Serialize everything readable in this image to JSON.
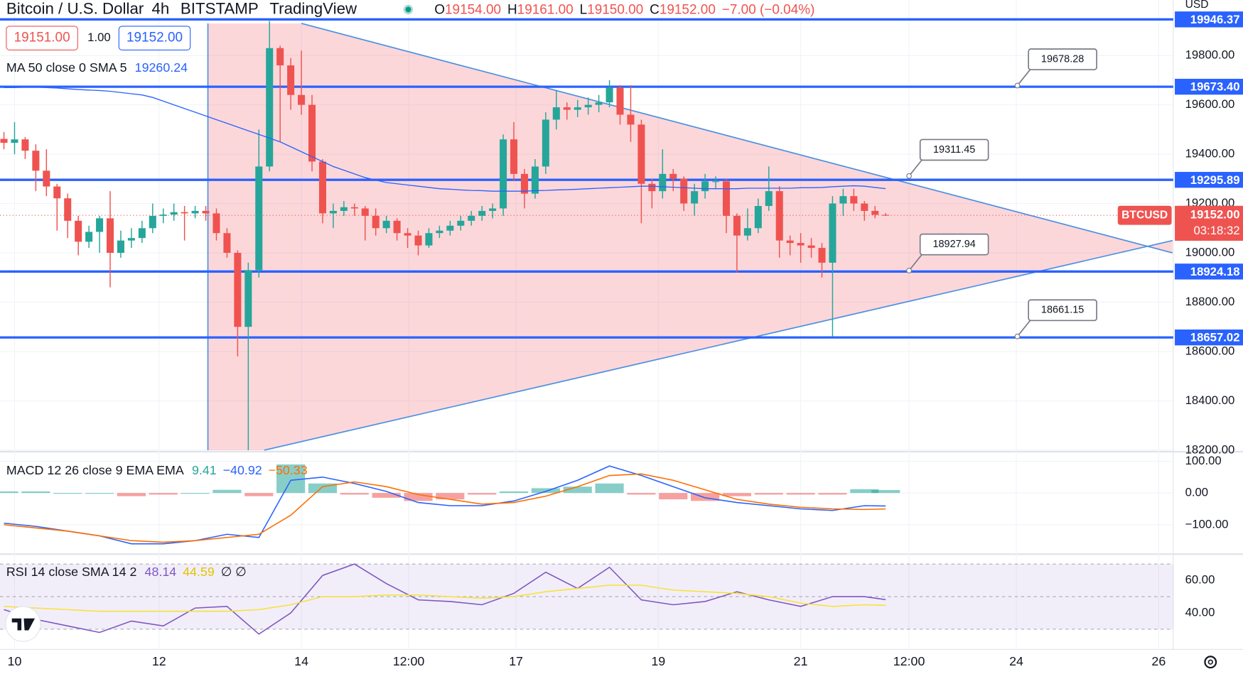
{
  "header": {
    "title": "Bitcoin / U.S. Dollar",
    "interval": "4h",
    "exchange": "BITSTAMP",
    "brand": "TradingView",
    "ohlc": [
      [
        "O",
        "19154.00"
      ],
      [
        "H",
        "19161.00"
      ],
      [
        "L",
        "19150.00"
      ],
      [
        "C",
        "19152.00"
      ]
    ],
    "change": "−7.00 (−0.04%)",
    "sell": "19151.00",
    "spread": "1.00",
    "buy": "19152.00"
  },
  "chart_data": [
    {
      "type": "candlestick",
      "legend": "MA 50 close 0 SMA 5",
      "legend_value": "19260.24",
      "up_color": "#26a69a",
      "down_color": "#ef5350",
      "ma_color": "#2962ff",
      "xlim": [
        -0.37,
        110.07
      ],
      "ylim": [
        18197,
        20025
      ],
      "xticks": [
        {
          "value": 1,
          "label": "10"
        },
        {
          "value": 14.6,
          "label": "12"
        },
        {
          "value": 28,
          "label": "14"
        },
        {
          "value": 38.1,
          "label": "12:00"
        },
        {
          "value": 48.2,
          "label": "17"
        },
        {
          "value": 61.6,
          "label": "19"
        },
        {
          "value": 75,
          "label": "21"
        },
        {
          "value": 85.2,
          "label": "12:00"
        },
        {
          "value": 95.3,
          "label": "24"
        },
        {
          "value": 108.7,
          "label": "26"
        }
      ],
      "yticks": [
        {
          "value": 18200,
          "label": "18200.00"
        },
        {
          "value": 18400,
          "label": "18400.00"
        },
        {
          "value": 18600,
          "label": "18600.00"
        },
        {
          "value": 18800,
          "label": "18800.00"
        },
        {
          "value": 19000,
          "label": "19000.00"
        },
        {
          "value": 19200,
          "label": "19200.00"
        },
        {
          "value": 19400,
          "label": "19400.00"
        },
        {
          "value": 19600,
          "label": "19600.00"
        },
        {
          "value": 19800,
          "label": "19800.00"
        }
      ],
      "currency": "USD",
      "open": [
        19462,
        19446,
        19460,
        19414,
        19333,
        19269,
        19221,
        19130,
        19045,
        19085,
        19140,
        19000,
        19050,
        19060,
        19100,
        19150,
        19155,
        19165,
        19160,
        19170,
        19160,
        19080,
        19000,
        18700,
        18930,
        19350,
        19830,
        19760,
        19640,
        19600,
        19370,
        19160,
        19170,
        19185,
        19180,
        19150,
        19100,
        19130,
        19080,
        19070,
        19030,
        19080,
        19090,
        19110,
        19130,
        19150,
        19170,
        19180,
        19460,
        19320,
        19240,
        19350,
        19540,
        19590,
        19580,
        19590,
        19600,
        19610,
        19670,
        19560,
        19520,
        19280,
        19250,
        19320,
        19300,
        19200,
        19250,
        19290,
        19290,
        19150,
        19070,
        19100,
        19190,
        19250,
        19050,
        19040,
        19030,
        19020,
        18960,
        19200,
        19230,
        19200,
        19170,
        19154
      ],
      "high": [
        19490,
        19530,
        19470,
        19440,
        19420,
        19280,
        19240,
        19150,
        19110,
        19150,
        19250,
        19090,
        19100,
        19130,
        19200,
        19180,
        19200,
        19190,
        19190,
        19190,
        19180,
        19100,
        19010,
        18960,
        19500,
        19940,
        19840,
        19790,
        19820,
        19640,
        19380,
        19200,
        19210,
        19200,
        19190,
        19180,
        19150,
        19140,
        19100,
        19090,
        19100,
        19110,
        19130,
        19150,
        19170,
        19190,
        19200,
        19480,
        19530,
        19340,
        19380,
        19570,
        19660,
        19610,
        19620,
        19630,
        19640,
        19700,
        19680,
        19680,
        19540,
        19300,
        19420,
        19340,
        19310,
        19280,
        19320,
        19310,
        19300,
        19160,
        19180,
        19220,
        19350,
        19270,
        19070,
        19080,
        19060,
        19040,
        19230,
        19260,
        19260,
        19210,
        19190,
        19161
      ],
      "low": [
        19420,
        19400,
        19380,
        19250,
        19230,
        19090,
        19060,
        18990,
        19020,
        19000,
        18860,
        18980,
        19020,
        19040,
        19080,
        19120,
        19130,
        19050,
        19140,
        19130,
        19050,
        18980,
        18580,
        18200,
        18900,
        19330,
        19450,
        19580,
        19560,
        19330,
        19120,
        19100,
        19150,
        19150,
        19050,
        19070,
        19080,
        19050,
        19020,
        18990,
        19020,
        19060,
        19070,
        19090,
        19110,
        19130,
        19140,
        19150,
        19290,
        19180,
        19220,
        19320,
        19500,
        19540,
        19550,
        19560,
        19570,
        19590,
        19520,
        19450,
        19120,
        19180,
        19220,
        19250,
        19170,
        19150,
        19220,
        19260,
        19080,
        18920,
        19050,
        19080,
        19170,
        18980,
        18990,
        18960,
        18980,
        18900,
        18660,
        19150,
        19170,
        19130,
        19140,
        19150
      ],
      "close": [
        19446,
        19460,
        19414,
        19333,
        19269,
        19221,
        19130,
        19045,
        19085,
        19140,
        19000,
        19050,
        19060,
        19100,
        19150,
        19155,
        19165,
        19160,
        19170,
        19160,
        19080,
        19000,
        18700,
        18930,
        19350,
        19830,
        19760,
        19640,
        19600,
        19370,
        19160,
        19170,
        19185,
        19180,
        19150,
        19100,
        19130,
        19080,
        19070,
        19030,
        19080,
        19090,
        19110,
        19130,
        19150,
        19170,
        19180,
        19460,
        19320,
        19240,
        19350,
        19540,
        19590,
        19580,
        19590,
        19600,
        19610,
        19670,
        19560,
        19520,
        19280,
        19250,
        19320,
        19300,
        19200,
        19250,
        19290,
        19290,
        19150,
        19070,
        19100,
        19190,
        19250,
        19050,
        19040,
        19030,
        19020,
        18960,
        19200,
        19230,
        19200,
        19170,
        19154,
        19152
      ],
      "ma": [
        19670,
        19670,
        19672,
        19672,
        19670,
        19668,
        19665,
        19662,
        19660,
        19658,
        19655,
        19650,
        19645,
        19640,
        19630,
        19615,
        19600,
        19585,
        19570,
        19555,
        19540,
        19525,
        19510,
        19495,
        19480,
        19465,
        19450,
        19430,
        19410,
        19390,
        19370,
        19350,
        19335,
        19320,
        19305,
        19295,
        19285,
        19280,
        19275,
        19270,
        19265,
        19260,
        19258,
        19255,
        19253,
        19252,
        19250,
        19250,
        19250,
        19250,
        19252,
        19253,
        19255,
        19256,
        19258,
        19260,
        19262,
        19264,
        19266,
        19268,
        19270,
        19270,
        19268,
        19266,
        19264,
        19262,
        19260,
        19260,
        19260,
        19260,
        19262,
        19262,
        19262,
        19262,
        19262,
        19264,
        19264,
        19265,
        19268,
        19270,
        19272,
        19270,
        19265,
        19260.24
      ],
      "levels": [
        {
          "value": 19946.37,
          "label": "19946.37"
        },
        {
          "value": 19673.4,
          "label": "19673.40"
        },
        {
          "value": 19295.89,
          "label": "19295.89"
        },
        {
          "value": 18924.18,
          "label": "18924.18"
        },
        {
          "value": 18657.02,
          "label": "18657.02"
        }
      ],
      "callouts": [
        {
          "value": 19678.28,
          "x": 95.4
        },
        {
          "value": 19311.45,
          "x": 85.2
        },
        {
          "value": 18927.94,
          "x": 85.2
        },
        {
          "value": 18661.15,
          "x": 95.4
        }
      ],
      "triangle": {
        "start": 19.2,
        "upper": [
          [
            28,
            19930
          ],
          [
            110,
            19000
          ]
        ],
        "lower": [
          [
            24.5,
            18200
          ],
          [
            110,
            19050
          ]
        ]
      },
      "last_price": {
        "value": 19152,
        "label": "19152.00"
      },
      "countdown": "03:18:32",
      "symbol": "BTCUSD"
    },
    {
      "type": "macd",
      "legend": "MACD 12 26 close 9 EMA EMA",
      "legend_values": [
        "9.41",
        "−40.92",
        "−50.33"
      ],
      "ylim": [
        -192.5,
        127.5
      ],
      "yticks": [
        {
          "value": 100,
          "label": "100.00"
        },
        {
          "value": 0,
          "label": "0.00"
        },
        {
          "value": -100,
          "label": "−100.00"
        }
      ],
      "x": [
        0,
        3,
        6,
        9,
        12,
        15,
        18,
        21,
        24,
        27,
        30,
        33,
        36,
        39,
        42,
        45,
        48,
        51,
        54,
        57,
        60,
        63,
        66,
        69,
        72,
        75,
        78,
        81,
        83
      ],
      "series": [
        {
          "name": "MACD",
          "color": "#2962ff",
          "values": [
            -95,
            -105,
            -120,
            -135,
            -160,
            -160,
            -150,
            -130,
            -140,
            40,
            50,
            30,
            5,
            -30,
            -40,
            -40,
            -25,
            5,
            40,
            85,
            55,
            20,
            -15,
            -30,
            -40,
            -50,
            -55,
            -40,
            -40.92
          ]
        },
        {
          "name": "Signal",
          "color": "#ff6d00",
          "values": [
            -100,
            -110,
            -120,
            -135,
            -150,
            -155,
            -150,
            -140,
            -130,
            -70,
            20,
            35,
            20,
            -5,
            -20,
            -35,
            -30,
            -10,
            20,
            55,
            60,
            40,
            10,
            -20,
            -35,
            -45,
            -50,
            -52,
            -50.33
          ]
        }
      ],
      "histogram": [
        5,
        5,
        0,
        0,
        -10,
        -5,
        0,
        10,
        -10,
        90,
        30,
        -5,
        -15,
        -25,
        -20,
        -5,
        5,
        15,
        20,
        30,
        -5,
        -20,
        -25,
        -10,
        -5,
        -5,
        -5,
        12,
        9.41
      ],
      "up_color": "#26a69a",
      "down_color": "#ef5350"
    },
    {
      "type": "rsi",
      "legend": "RSI 14 close SMA 14 2",
      "legend_values": [
        "48.14",
        "44.59",
        "∅ ∅"
      ],
      "ylim": [
        17.6,
        75.6
      ],
      "yticks": [
        {
          "value": 60,
          "label": "60.00"
        },
        {
          "value": 40,
          "label": "40.00"
        }
      ],
      "bands": [
        70,
        50,
        30
      ],
      "x": [
        0,
        3,
        6,
        9,
        12,
        15,
        18,
        21,
        24,
        27,
        30,
        33,
        36,
        39,
        42,
        45,
        48,
        51,
        54,
        57,
        60,
        63,
        66,
        69,
        72,
        75,
        78,
        81,
        83
      ],
      "series": [
        {
          "name": "RSI",
          "color": "#7e57c2",
          "values": [
            42,
            36,
            32,
            28,
            35,
            32,
            43,
            44,
            27,
            40,
            63,
            70,
            58,
            48,
            47,
            45,
            52,
            65,
            55,
            68,
            48,
            45,
            47,
            53,
            48,
            44,
            50,
            50,
            48.14
          ]
        },
        {
          "name": "RSI-based MA",
          "color": "#f7e23a",
          "values": [
            44,
            43,
            42,
            41,
            41,
            41,
            41,
            41,
            42,
            45,
            50,
            50,
            51,
            51,
            50,
            49,
            50,
            53,
            55,
            57,
            57,
            54,
            53,
            52,
            50,
            46,
            44,
            45,
            44.59
          ]
        }
      ]
    }
  ]
}
